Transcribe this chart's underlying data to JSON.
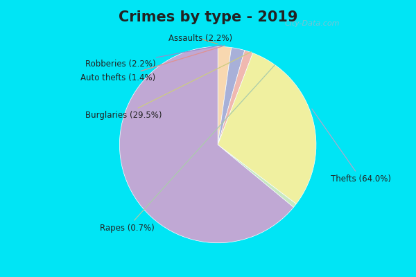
{
  "title": "Crimes by type - 2019",
  "slices": [
    {
      "label": "Thefts",
      "pct": 64.0,
      "color": "#c0a8d4"
    },
    {
      "label": "Burglaries",
      "pct": 29.5,
      "color": "#f0f0a0"
    },
    {
      "label": "Rapes",
      "pct": 0.7,
      "color": "#c8e8c0"
    },
    {
      "label": "Auto thefts",
      "pct": 1.4,
      "color": "#f0b8b0"
    },
    {
      "label": "Robberies",
      "pct": 2.2,
      "color": "#a8b0d8"
    },
    {
      "label": "Assaults",
      "pct": 2.2,
      "color": "#f8d8b0"
    }
  ],
  "wedge_order": [
    "Assaults",
    "Robberies",
    "Auto thefts",
    "Burglaries",
    "Rapes",
    "Thefts"
  ],
  "bg_cyan": "#00e5f5",
  "bg_main": "#d0ecd8",
  "title_color": "#222222",
  "title_fontsize": 15,
  "label_fontsize": 8.5,
  "watermark": "City-Data.com",
  "top_bar_height": 0.115,
  "bottom_bar_height": 0.07
}
